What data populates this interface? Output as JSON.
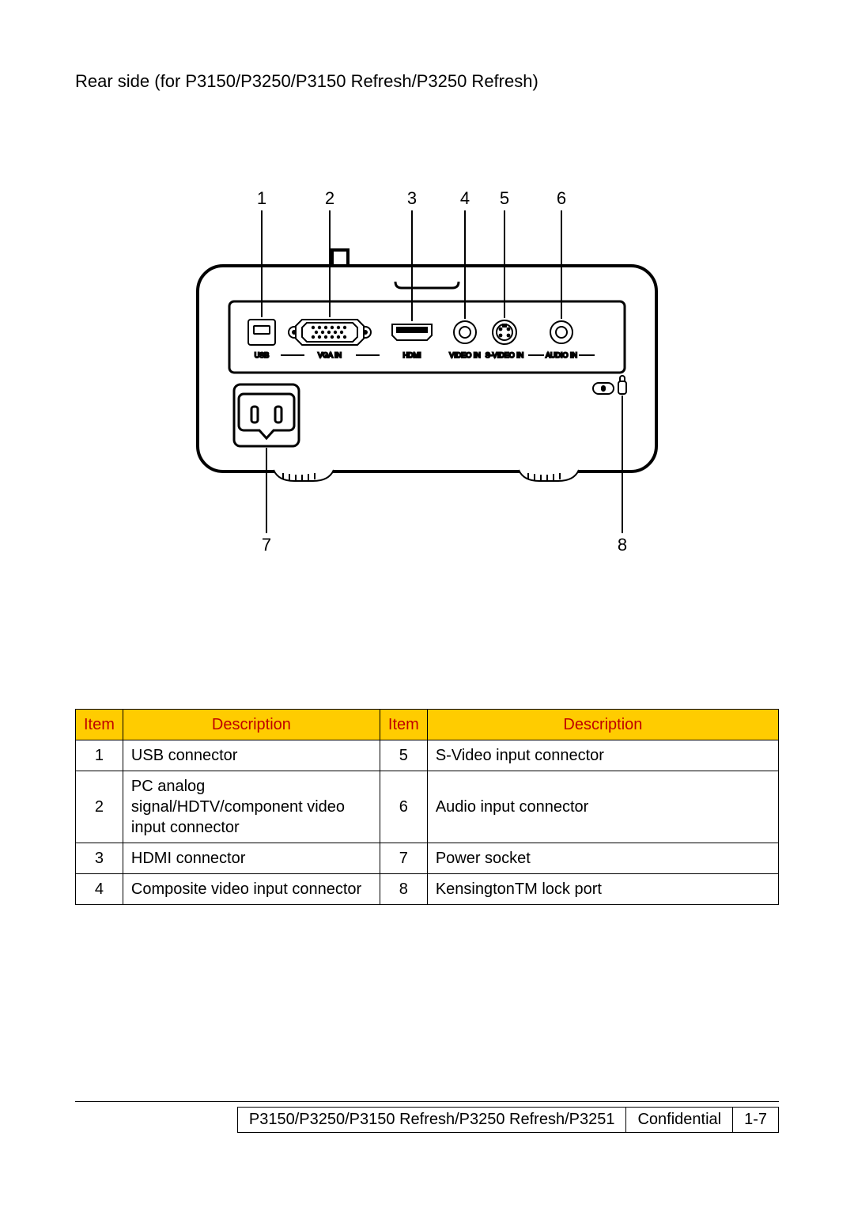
{
  "heading": "Rear side (for P3150/P3250/P3150 Refresh/P3250 Refresh)",
  "diagram": {
    "labels_top": [
      "1",
      "2",
      "3",
      "4",
      "5",
      "6"
    ],
    "labels_bottom_left": "7",
    "labels_bottom_right": "8",
    "port_labels": {
      "usb": "USB",
      "vga": "VGA IN",
      "hdmi": "HDMI",
      "video": "VIDEO IN",
      "svideo": "S-VIDEO IN",
      "audio": "AUDIO IN"
    },
    "label_font_size": 18,
    "port_label_font_size": 9,
    "line_color": "#000000",
    "fill_color": "#ffffff"
  },
  "table": {
    "header_bg": "#ffcc00",
    "header_color": "#c00000",
    "headers": {
      "item": "Item",
      "desc": "Description"
    },
    "rows": [
      {
        "a_num": "1",
        "a_desc": "USB connector",
        "b_num": "5",
        "b_desc": "S-Video input connector"
      },
      {
        "a_num": "2",
        "a_desc": "PC analog signal/HDTV/component video input connector",
        "b_num": "6",
        "b_desc": "Audio input connector"
      },
      {
        "a_num": "3",
        "a_desc": "HDMI connector",
        "b_num": "7",
        "b_desc": "Power socket"
      },
      {
        "a_num": "4",
        "a_desc": "Composite video input connector",
        "b_num": "8",
        "b_desc": "KensingtonTM lock port"
      }
    ]
  },
  "footer": {
    "model": "P3150/P3250/P3150 Refresh/P3250 Refresh/P3251",
    "confidential": "Confidential",
    "page": "1-7"
  }
}
